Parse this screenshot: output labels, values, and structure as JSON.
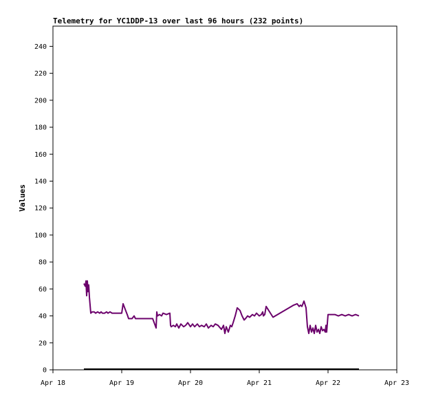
{
  "chart_data": {
    "type": "line",
    "title": "Telemetry for YC1DDP-13 over last 96 hours (232 points)",
    "xlabel": "",
    "ylabel": "Values",
    "ylim": [
      0,
      255
    ],
    "yticks": [
      0,
      20,
      40,
      60,
      80,
      100,
      120,
      140,
      160,
      180,
      200,
      220,
      240
    ],
    "xlim": [
      "Apr 18",
      "Apr 23"
    ],
    "xticks": [
      "Apr 18",
      "Apr 19",
      "Apr 20",
      "Apr 21",
      "Apr 22",
      "Apr 23"
    ],
    "grid": false,
    "series": [
      {
        "color": "#6b006b",
        "x": [
          0.45,
          0.47,
          0.48,
          0.49,
          0.5,
          0.51,
          0.52,
          0.53,
          0.55,
          0.57,
          0.6,
          0.62,
          0.65,
          0.68,
          0.7,
          0.72,
          0.75,
          0.78,
          0.8,
          0.83,
          0.86,
          0.9,
          0.95,
          1.0,
          1.02,
          1.05,
          1.08,
          1.1,
          1.12,
          1.15,
          1.18,
          1.2,
          1.25,
          1.3,
          1.35,
          1.4,
          1.45,
          1.5,
          1.51,
          1.52,
          1.55,
          1.58,
          1.6,
          1.65,
          1.7,
          1.71,
          1.72,
          1.75,
          1.78,
          1.8,
          1.83,
          1.86,
          1.9,
          1.93,
          1.96,
          2.0,
          2.03,
          2.06,
          2.1,
          2.13,
          2.16,
          2.2,
          2.23,
          2.26,
          2.3,
          2.33,
          2.36,
          2.4,
          2.45,
          2.48,
          2.5,
          2.52,
          2.55,
          2.58,
          2.6,
          2.62,
          2.65,
          2.68,
          2.7,
          2.72,
          2.75,
          2.78,
          2.8,
          2.83,
          2.86,
          2.9,
          2.93,
          2.96,
          3.0,
          3.03,
          3.05,
          3.06,
          3.08,
          3.1,
          3.2,
          3.3,
          3.4,
          3.5,
          3.55,
          3.58,
          3.6,
          3.62,
          3.65,
          3.68,
          3.7,
          3.72,
          3.74,
          3.76,
          3.78,
          3.8,
          3.82,
          3.84,
          3.86,
          3.88,
          3.9,
          3.92,
          3.94,
          3.96,
          3.97,
          3.98,
          4.0,
          4.05,
          4.1,
          4.15,
          4.2,
          4.25,
          4.3,
          4.35,
          4.4,
          4.45
        ],
        "y": [
          64,
          62,
          66,
          55,
          66,
          58,
          63,
          54,
          42,
          43,
          43,
          42,
          43,
          42,
          43,
          42,
          42,
          43,
          42,
          43,
          42,
          42,
          42,
          42,
          49,
          45,
          41,
          38,
          38,
          38,
          40,
          38,
          38,
          38,
          38,
          38,
          38,
          31,
          43,
          40,
          41,
          40,
          42,
          41,
          42,
          33,
          32,
          33,
          32,
          34,
          31,
          34,
          32,
          33,
          35,
          32,
          34,
          32,
          34,
          32,
          33,
          32,
          34,
          31,
          33,
          32,
          34,
          33,
          30,
          33,
          27,
          32,
          28,
          33,
          32,
          35,
          40,
          46,
          45,
          44,
          40,
          37,
          38,
          40,
          39,
          41,
          40,
          42,
          40,
          41,
          43,
          40,
          41,
          47,
          39,
          42,
          45,
          48,
          49,
          47,
          48,
          47,
          51,
          46,
          32,
          27,
          33,
          28,
          31,
          27,
          33,
          28,
          30,
          27,
          32,
          29,
          30,
          28,
          33,
          28,
          41,
          41,
          41,
          40,
          41,
          40,
          41,
          40,
          41,
          40
        ]
      },
      {
        "color": "#000000",
        "x": [
          0.45,
          4.45
        ],
        "y": [
          0.5,
          0.5
        ]
      }
    ]
  }
}
